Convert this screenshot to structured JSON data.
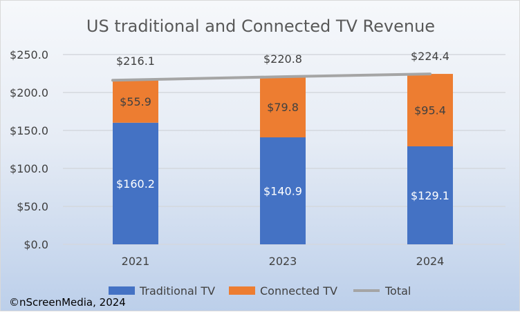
{
  "chart_data": {
    "type": "bar",
    "stacked": true,
    "title": "US traditional and Connected TV Revenue",
    "categories": [
      "2021",
      "2023",
      "2024"
    ],
    "series": [
      {
        "name": "Traditional TV",
        "type": "bar",
        "color": "#4472c4",
        "values": [
          160.2,
          140.9,
          129.1
        ],
        "labels": [
          "$160.2",
          "$140.9",
          "$129.1"
        ]
      },
      {
        "name": "Connected TV",
        "type": "bar",
        "color": "#ed7d31",
        "values": [
          55.9,
          79.8,
          95.4
        ],
        "labels": [
          "$55.9",
          "$79.8",
          "$95.4"
        ]
      },
      {
        "name": "Total",
        "type": "line",
        "color": "#a5a5a5",
        "values": [
          216.1,
          220.8,
          224.4
        ],
        "labels": [
          "$216.1",
          "$220.8",
          "$224.4"
        ]
      }
    ],
    "ylim": [
      0,
      250
    ],
    "yticks": [
      "$0.0",
      "$50.0",
      "$100.0",
      "$150.0",
      "$200.0",
      "$250.0"
    ],
    "ytick_values": [
      0,
      50,
      100,
      150,
      200,
      250
    ],
    "grid": true,
    "legend": "bottom",
    "xlabel": "",
    "ylabel": ""
  },
  "credit": "©nScreenMedia, 2024"
}
